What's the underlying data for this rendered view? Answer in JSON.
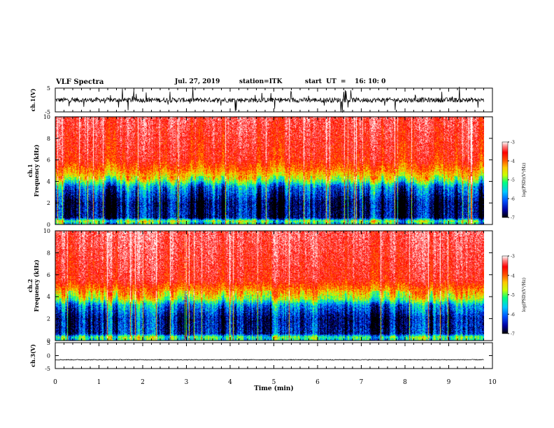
{
  "header": {
    "title": "VLF Spectra",
    "date": "Jul. 27, 2019",
    "station": "station=ITK",
    "start": "start  UT  =    16: 10: 0"
  },
  "chart_data": [
    {
      "type": "line",
      "panel": "ch1-waveform",
      "ylabel": "ch.1(V)",
      "ylim": [
        -5,
        5
      ],
      "yticks": [
        "5",
        "-5"
      ],
      "baseline": 0,
      "noise_amplitude": 1.0
    },
    {
      "type": "heatmap",
      "panel": "ch1-spectrogram",
      "ylabel": "ch.1\nFrequency  (kHz)",
      "yticks": [
        "0",
        "2",
        "4",
        "6",
        "8",
        "10"
      ],
      "ylim": [
        0,
        10
      ],
      "colorbar": {
        "label": "log(PSD)(V²/Hz)",
        "ticks": [
          "-3",
          "-4",
          "-5",
          "-6",
          "-7"
        ],
        "range": [
          -7,
          -3
        ]
      },
      "profile_khz": [
        {
          "f": 0.0,
          "v": -5.8
        },
        {
          "f": 0.3,
          "v": -5.2
        },
        {
          "f": 0.6,
          "v": -6.7
        },
        {
          "f": 2.0,
          "v": -6.8
        },
        {
          "f": 3.5,
          "v": -6.1
        },
        {
          "f": 4.2,
          "v": -5.0
        },
        {
          "f": 5.0,
          "v": -4.4
        },
        {
          "f": 6.0,
          "v": -3.9
        },
        {
          "f": 10.0,
          "v": -3.6
        }
      ]
    },
    {
      "type": "heatmap",
      "panel": "ch2-spectrogram",
      "ylabel": "ch.2\nFrequency  (kHz)",
      "yticks": [
        "0",
        "2",
        "4",
        "6",
        "8",
        "10"
      ],
      "ylim": [
        0,
        10
      ],
      "colorbar": {
        "label": "log(PSD)(V²/Hz)",
        "ticks": [
          "-3",
          "-4",
          "-5",
          "-6",
          "-7"
        ],
        "range": [
          -7,
          -3
        ]
      },
      "profile_khz": [
        {
          "f": 0.0,
          "v": -5.6
        },
        {
          "f": 0.3,
          "v": -5.3
        },
        {
          "f": 0.6,
          "v": -6.5
        },
        {
          "f": 2.0,
          "v": -6.6
        },
        {
          "f": 3.2,
          "v": -6.0
        },
        {
          "f": 3.8,
          "v": -5.0
        },
        {
          "f": 4.6,
          "v": -4.4
        },
        {
          "f": 5.5,
          "v": -3.8
        },
        {
          "f": 10.0,
          "v": -3.5
        }
      ]
    },
    {
      "type": "line",
      "panel": "ch3-waveform",
      "ylabel": "ch.3(V)",
      "ylim": [
        -5,
        5
      ],
      "yticks": [
        "5",
        "0",
        "-5"
      ],
      "baseline": -1.6,
      "noise_amplitude": 0.15
    }
  ],
  "x_axis": {
    "label": "Time  (min)",
    "range": [
      0,
      10
    ],
    "ticks": [
      "0",
      "1",
      "2",
      "3",
      "4",
      "5",
      "6",
      "7",
      "8",
      "9",
      "10"
    ],
    "data_end_min": 9.8
  },
  "colors": {
    "scale": [
      "#000000",
      "#0000a0",
      "#0050ff",
      "#00c8ff",
      "#00ff80",
      "#c8ff00",
      "#ffc800",
      "#ff5000",
      "#ff0000",
      "#ff8080",
      "#ffffff"
    ]
  }
}
